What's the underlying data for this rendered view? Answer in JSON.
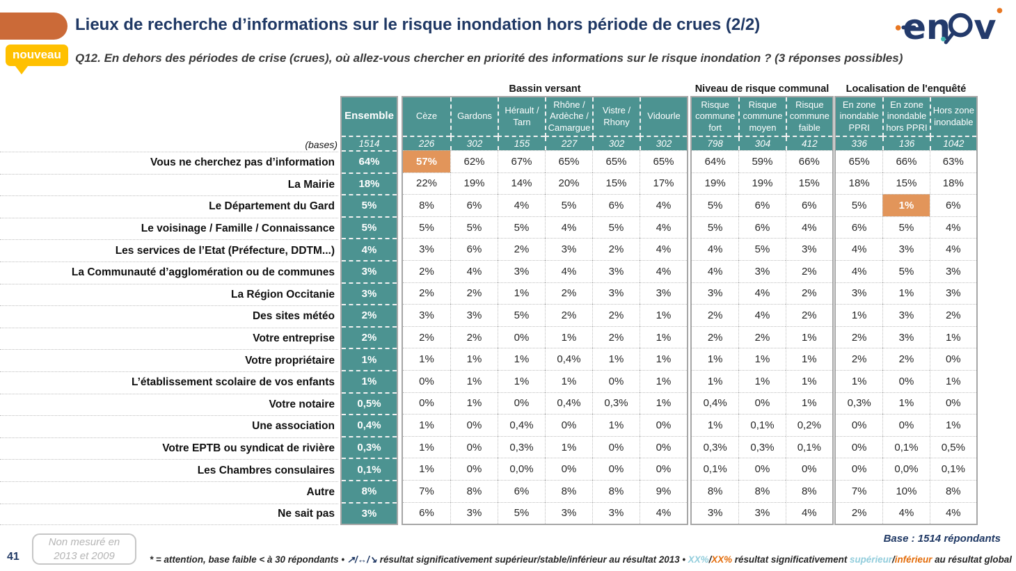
{
  "header": {
    "title": "Lieux de recherche d’informations sur le risque inondation hors période de crues (2/2)",
    "badge": "nouveau",
    "question": "Q12. En dehors des périodes de crise (crues), où allez-vous chercher en priorité des informations sur le risque inondation ? (3 réponses possibles)",
    "logo_text": "enov"
  },
  "chart_data": {
    "type": "table",
    "title": "Lieux de recherche d’informations sur le risque inondation hors période de crues (2/2)",
    "bases_label": "(bases)",
    "row_labels": [
      "Vous ne cherchez pas d’information",
      "La Mairie",
      "Le Département du Gard",
      "Le voisinage / Famille / Connaissance",
      "Les services de l’Etat (Préfecture, DDTM...)",
      "La Communauté d’agglomération ou de communes",
      "La Région Occitanie",
      "Des sites météo",
      "Votre entreprise",
      "Votre propriétaire",
      "L’établissement scolaire de vos enfants",
      "Votre notaire",
      "Une association",
      "Votre EPTB ou syndicat de rivière",
      "Les Chambres consulaires",
      "Autre",
      "Ne sait pas"
    ],
    "groups": [
      {
        "title": "",
        "columns": [
          {
            "header": "Ensemble",
            "base": "1514",
            "values": [
              "64%",
              "18%",
              "5%",
              "5%",
              "4%",
              "3%",
              "3%",
              "2%",
              "2%",
              "1%",
              "1%",
              "0,5%",
              "0,4%",
              "0,3%",
              "0,1%",
              "8%",
              "3%"
            ]
          }
        ]
      },
      {
        "title": "Bassin versant",
        "columns": [
          {
            "header": "Cèze",
            "base": "226",
            "values": [
              "57%",
              "22%",
              "8%",
              "5%",
              "3%",
              "2%",
              "2%",
              "3%",
              "2%",
              "1%",
              "0%",
              "0%",
              "1%",
              "1%",
              "1%",
              "7%",
              "6%"
            ]
          },
          {
            "header": "Gardons",
            "base": "302",
            "values": [
              "62%",
              "19%",
              "6%",
              "5%",
              "6%",
              "4%",
              "2%",
              "3%",
              "2%",
              "1%",
              "1%",
              "1%",
              "0%",
              "0%",
              "0%",
              "8%",
              "3%"
            ]
          },
          {
            "header": "Hérault / Tarn",
            "base": "155",
            "values": [
              "67%",
              "14%",
              "4%",
              "5%",
              "2%",
              "3%",
              "1%",
              "5%",
              "0%",
              "1%",
              "1%",
              "0%",
              "0,4%",
              "0,3%",
              "0,0%",
              "6%",
              "5%"
            ]
          },
          {
            "header": "Rhône / Ardèche / Camargue",
            "base": "227",
            "values": [
              "65%",
              "20%",
              "5%",
              "4%",
              "3%",
              "4%",
              "2%",
              "2%",
              "1%",
              "0,4%",
              "1%",
              "0,4%",
              "0%",
              "1%",
              "0%",
              "8%",
              "3%"
            ]
          },
          {
            "header": "Vistre / Rhony",
            "base": "302",
            "values": [
              "65%",
              "15%",
              "6%",
              "5%",
              "2%",
              "3%",
              "3%",
              "2%",
              "2%",
              "1%",
              "0%",
              "0,3%",
              "1%",
              "0%",
              "0%",
              "8%",
              "3%"
            ]
          },
          {
            "header": "Vidourle",
            "base": "302",
            "values": [
              "65%",
              "17%",
              "4%",
              "4%",
              "4%",
              "4%",
              "3%",
              "1%",
              "1%",
              "1%",
              "1%",
              "1%",
              "0%",
              "0%",
              "0%",
              "9%",
              "4%"
            ]
          }
        ]
      },
      {
        "title": "Niveau de risque communal",
        "columns": [
          {
            "header": "Risque commune fort",
            "base": "798",
            "values": [
              "64%",
              "19%",
              "5%",
              "5%",
              "4%",
              "4%",
              "3%",
              "2%",
              "2%",
              "1%",
              "1%",
              "0,4%",
              "1%",
              "0,3%",
              "0,1%",
              "8%",
              "3%"
            ]
          },
          {
            "header": "Risque commune moyen",
            "base": "304",
            "values": [
              "59%",
              "19%",
              "6%",
              "6%",
              "5%",
              "3%",
              "4%",
              "4%",
              "2%",
              "1%",
              "1%",
              "0%",
              "0,1%",
              "0,3%",
              "0%",
              "8%",
              "3%"
            ]
          },
          {
            "header": "Risque commune faible",
            "base": "412",
            "values": [
              "66%",
              "15%",
              "6%",
              "4%",
              "3%",
              "2%",
              "2%",
              "2%",
              "1%",
              "1%",
              "1%",
              "1%",
              "0,2%",
              "0,1%",
              "0%",
              "8%",
              "4%"
            ]
          }
        ]
      },
      {
        "title": "Localisation de l'enquêté",
        "columns": [
          {
            "header": "En zone inondable PPRI",
            "base": "336",
            "values": [
              "65%",
              "18%",
              "5%",
              "6%",
              "4%",
              "4%",
              "3%",
              "1%",
              "2%",
              "2%",
              "1%",
              "0,3%",
              "0%",
              "0%",
              "0%",
              "7%",
              "2%"
            ]
          },
          {
            "header": "En zone inondable hors PPRI",
            "base": "136",
            "values": [
              "66%",
              "15%",
              "1%",
              "5%",
              "3%",
              "5%",
              "1%",
              "3%",
              "3%",
              "2%",
              "0%",
              "1%",
              "0%",
              "0,1%",
              "0,0%",
              "10%",
              "4%"
            ]
          },
          {
            "header": "Hors zone inondable",
            "base": "1042",
            "values": [
              "63%",
              "18%",
              "6%",
              "4%",
              "4%",
              "3%",
              "3%",
              "2%",
              "1%",
              "0%",
              "1%",
              "0%",
              "1%",
              "0,5%",
              "0,1%",
              "8%",
              "4%"
            ]
          }
        ]
      }
    ],
    "highlights": [
      {
        "group": 1,
        "col": 0,
        "row": 0
      },
      {
        "group": 3,
        "col": 1,
        "row": 2
      }
    ],
    "highlight_color": "#e2955a",
    "header_color": "#4c9391"
  },
  "footer": {
    "page_number": "41",
    "note_box_line1": "Non mesuré en",
    "note_box_line2": "2013 et 2009",
    "base_note": "Base : 1514 répondants",
    "legend": {
      "part1": "* = attention, base faible < à 30 répondants • ",
      "arrows": "↗/↔/↘",
      "part2": " résultat significativement supérieur/stable/inférieur au résultat 2013 • ",
      "xx_sup": "XX%",
      "slash1": "/",
      "xx_inf": "XX%",
      "part3": " résultat significativement ",
      "sup_word": "supérieur",
      "slash2": "/",
      "inf_word": "inférieur",
      "part4": " au résultat global"
    }
  },
  "colors": {
    "teal": "#4c9391",
    "highlight_orange": "#e2955a",
    "accent_orange": "#cb6a38",
    "badge_yellow": "#ffc000",
    "navy": "#1f3864",
    "legend_blue": "#92cddc",
    "legend_orange": "#e36c0a"
  }
}
